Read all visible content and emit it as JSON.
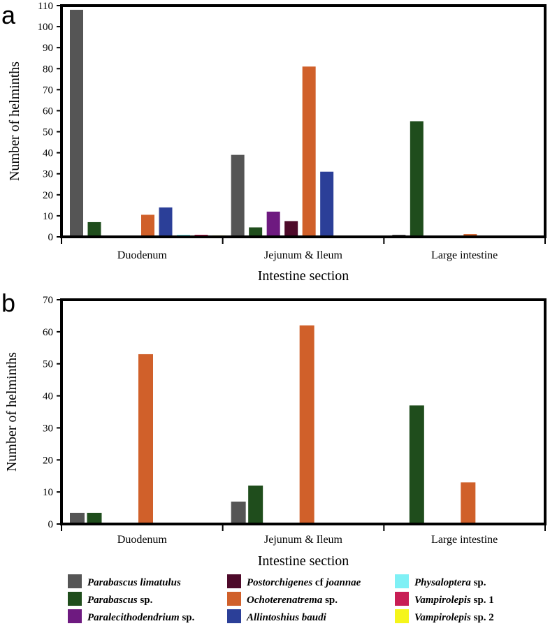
{
  "chart_data": [
    {
      "panel": "a",
      "type": "bar",
      "xlabel": "Intestine section",
      "ylabel": "Number of helminths",
      "ylim": [
        0,
        110
      ],
      "yticks": [
        0,
        10,
        20,
        30,
        40,
        50,
        60,
        70,
        80,
        90,
        100,
        110
      ],
      "categories": [
        "Duodenum",
        "Jejunum & Ileum",
        "Large intestine"
      ],
      "series": [
        {
          "name": "Parabascus limatulus",
          "values": [
            108,
            39,
            1
          ]
        },
        {
          "name": "Parabascus sp.",
          "values": [
            7,
            4.5,
            55
          ]
        },
        {
          "name": "Paralecithodendrium sp.",
          "values": [
            0,
            12,
            0
          ]
        },
        {
          "name": "Postorchigenes cf joannae",
          "values": [
            0,
            7.5,
            0
          ]
        },
        {
          "name": "Ochoterenatrema sp.",
          "values": [
            10.5,
            81,
            1.3
          ]
        },
        {
          "name": "Allintoshius baudi",
          "values": [
            14,
            31,
            0
          ]
        },
        {
          "name": "Physaloptera sp.",
          "values": [
            1,
            0,
            0
          ]
        },
        {
          "name": "Vampirolepis sp. 1",
          "values": [
            1,
            0,
            0
          ]
        },
        {
          "name": "Vampirolepis sp. 2",
          "values": [
            0.7,
            0,
            0
          ]
        }
      ]
    },
    {
      "panel": "b",
      "type": "bar",
      "xlabel": "Intestine section",
      "ylabel": "Number of helminths",
      "ylim": [
        0,
        70
      ],
      "yticks": [
        0,
        10,
        20,
        30,
        40,
        50,
        60,
        70
      ],
      "categories": [
        "Duodenum",
        "Jejunum & Ileum",
        "Large intestine"
      ],
      "series": [
        {
          "name": "Parabascus limatulus",
          "values": [
            3.5,
            7,
            0
          ]
        },
        {
          "name": "Parabascus sp.",
          "values": [
            3.5,
            12,
            37
          ]
        },
        {
          "name": "Paralecithodendrium sp.",
          "values": [
            0,
            0,
            0
          ]
        },
        {
          "name": "Postorchigenes cf joannae",
          "values": [
            0,
            0,
            0
          ]
        },
        {
          "name": "Ochoterenatrema sp.",
          "values": [
            53,
            62,
            13
          ]
        },
        {
          "name": "Allintoshius baudi",
          "values": [
            0,
            0,
            0
          ]
        },
        {
          "name": "Physaloptera sp.",
          "values": [
            0,
            0,
            0
          ]
        },
        {
          "name": "Vampirolepis sp. 1",
          "values": [
            0,
            0,
            0
          ]
        },
        {
          "name": "Vampirolepis sp. 2",
          "values": [
            0,
            0,
            0
          ]
        }
      ]
    }
  ],
  "legend": [
    {
      "italic": "Parabascus limatulus",
      "rest": "",
      "color": "#555555"
    },
    {
      "italic": "Parabascus",
      "rest": " sp.",
      "color": "#1f4d1c"
    },
    {
      "italic": "Paralecithodendrium",
      "rest": " sp.",
      "color": "#6e1a80"
    },
    {
      "italic": "Postorchigenes",
      "rest": " cf ",
      "italic2": "joannae",
      "color": "#4e0a2a"
    },
    {
      "italic": "Ochoterenatrema",
      "rest": " sp.",
      "color": "#d0602a"
    },
    {
      "italic": "Allintoshius baudi",
      "rest": "",
      "color": "#2b3f98"
    },
    {
      "italic": "Physaloptera",
      "rest": " sp.",
      "color": "#7ff0f5"
    },
    {
      "italic": "Vampirolepis",
      "rest": " sp. 1",
      "color": "#c81e55"
    },
    {
      "italic": "Vampirolepis",
      "rest": " sp. 2",
      "color": "#f5f51a"
    }
  ]
}
